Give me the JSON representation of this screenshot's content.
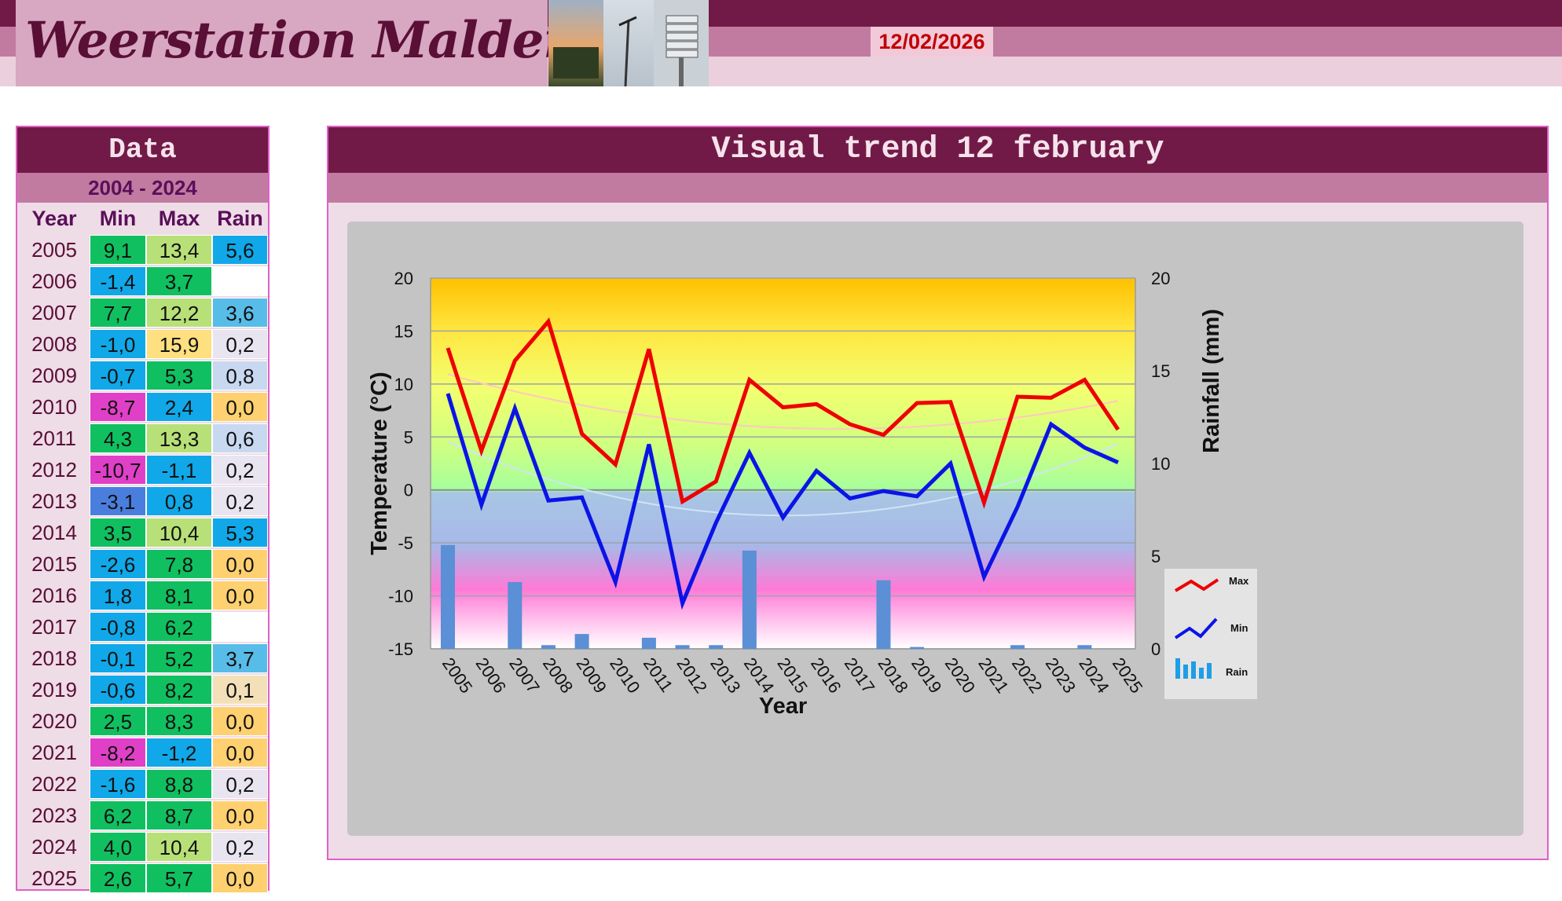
{
  "header": {
    "site_title": "Weerstation Malderen",
    "date": "12/02/2026"
  },
  "table": {
    "title": "Data",
    "period": "2004 - 2024",
    "headers": [
      "Year",
      "Min",
      "Max",
      "Rain"
    ],
    "rows": [
      {
        "year": "2005",
        "min": "9,1",
        "max": "13,4",
        "rain": "5,6"
      },
      {
        "year": "2006",
        "min": "-1,4",
        "max": "3,7",
        "rain": ""
      },
      {
        "year": "2007",
        "min": "7,7",
        "max": "12,2",
        "rain": "3,6"
      },
      {
        "year": "2008",
        "min": "-1,0",
        "max": "15,9",
        "rain": "0,2"
      },
      {
        "year": "2009",
        "min": "-0,7",
        "max": "5,3",
        "rain": "0,8"
      },
      {
        "year": "2010",
        "min": "-8,7",
        "max": "2,4",
        "rain": "0,0"
      },
      {
        "year": "2011",
        "min": "4,3",
        "max": "13,3",
        "rain": "0,6"
      },
      {
        "year": "2012",
        "min": "-10,7",
        "max": "-1,1",
        "rain": "0,2"
      },
      {
        "year": "2013",
        "min": "-3,1",
        "max": "0,8",
        "rain": "0,2"
      },
      {
        "year": "2014",
        "min": "3,5",
        "max": "10,4",
        "rain": "5,3"
      },
      {
        "year": "2015",
        "min": "-2,6",
        "max": "7,8",
        "rain": "0,0"
      },
      {
        "year": "2016",
        "min": "1,8",
        "max": "8,1",
        "rain": "0,0"
      },
      {
        "year": "2017",
        "min": "-0,8",
        "max": "6,2",
        "rain": ""
      },
      {
        "year": "2018",
        "min": "-0,1",
        "max": "5,2",
        "rain": "3,7"
      },
      {
        "year": "2019",
        "min": "-0,6",
        "max": "8,2",
        "rain": "0,1"
      },
      {
        "year": "2020",
        "min": "2,5",
        "max": "8,3",
        "rain": "0,0"
      },
      {
        "year": "2021",
        "min": "-8,2",
        "max": "-1,2",
        "rain": "0,0"
      },
      {
        "year": "2022",
        "min": "-1,6",
        "max": "8,8",
        "rain": "0,2"
      },
      {
        "year": "2023",
        "min": "6,2",
        "max": "8,7",
        "rain": "0,0"
      },
      {
        "year": "2024",
        "min": "4,0",
        "max": "10,4",
        "rain": "0,2"
      },
      {
        "year": "2025",
        "min": "2,6",
        "max": "5,7",
        "rain": "0,0"
      }
    ]
  },
  "chart_title": "Visual trend 12 february",
  "colors": {
    "max_line": "#ee0000",
    "min_line": "#0a14e6",
    "rain_bar": "#5b8fd6",
    "title_bar": "#721a47",
    "accent": "#c27ba0"
  },
  "chart_data": {
    "type": "line",
    "title": "Visual trend 12 february",
    "xlabel": "Year",
    "ylabel": "Temperature (°C)",
    "y2label": "Rainfall (mm)",
    "x": [
      "2005",
      "2006",
      "2007",
      "2008",
      "2009",
      "2010",
      "2011",
      "2012",
      "2013",
      "2014",
      "2015",
      "2016",
      "2017",
      "2018",
      "2019",
      "2020",
      "2021",
      "2022",
      "2023",
      "2024",
      "2025"
    ],
    "ylim": [
      -15,
      20
    ],
    "yticks": [
      -15,
      -10,
      -5,
      0,
      5,
      10,
      15,
      20
    ],
    "y2lim": [
      0,
      20
    ],
    "y2ticks": [
      0,
      5,
      10,
      15,
      20
    ],
    "grid": true,
    "legend": "bottom-right",
    "series": [
      {
        "name": "Max",
        "axis": "left",
        "type": "line",
        "values": [
          13.4,
          3.7,
          12.2,
          15.9,
          5.3,
          2.4,
          13.3,
          -1.1,
          0.8,
          10.4,
          7.8,
          8.1,
          6.2,
          5.2,
          8.2,
          8.3,
          -1.2,
          8.8,
          8.7,
          10.4,
          5.7
        ]
      },
      {
        "name": "Min",
        "axis": "left",
        "type": "line",
        "values": [
          9.1,
          -1.4,
          7.7,
          -1.0,
          -0.7,
          -8.7,
          4.3,
          -10.7,
          -3.1,
          3.5,
          -2.6,
          1.8,
          -0.8,
          -0.1,
          -0.6,
          2.5,
          -8.2,
          -1.6,
          6.2,
          4.0,
          2.6
        ]
      },
      {
        "name": "Rain",
        "axis": "right",
        "type": "bar",
        "values": [
          5.6,
          null,
          3.6,
          0.2,
          0.8,
          0.0,
          0.6,
          0.2,
          0.2,
          5.3,
          0.0,
          0.0,
          null,
          3.7,
          0.1,
          0.0,
          0.0,
          0.2,
          0.0,
          0.2,
          0.0
        ]
      }
    ]
  }
}
